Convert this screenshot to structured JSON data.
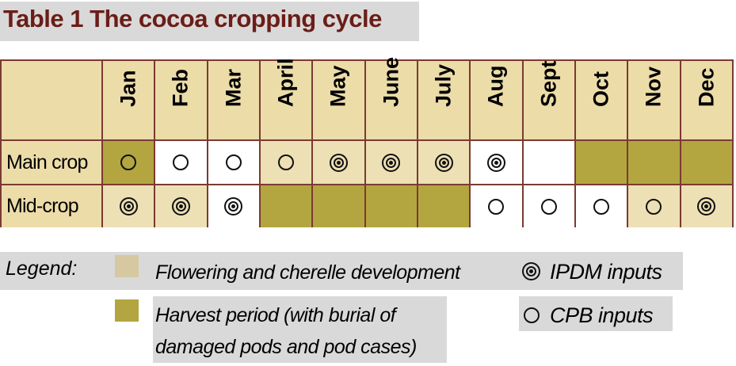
{
  "title": "Table 1  The cocoa cropping cycle",
  "months": [
    "Jan",
    "Feb",
    "Mar",
    "April",
    "May",
    "June",
    "July",
    "Aug",
    "Sept",
    "Oct",
    "Nov",
    "Dec"
  ],
  "rows": [
    {
      "label": "Main crop",
      "cells": [
        {
          "stage": "harvest",
          "input": "cpb"
        },
        {
          "stage": "none",
          "input": "cpb"
        },
        {
          "stage": "none",
          "input": "cpb"
        },
        {
          "stage": "flowering",
          "input": "cpb"
        },
        {
          "stage": "flowering",
          "input": "ipdm"
        },
        {
          "stage": "flowering",
          "input": "ipdm"
        },
        {
          "stage": "flowering",
          "input": "ipdm"
        },
        {
          "stage": "none",
          "input": "ipdm"
        },
        {
          "stage": "none",
          "input": ""
        },
        {
          "stage": "harvest",
          "input": ""
        },
        {
          "stage": "harvest",
          "input": ""
        },
        {
          "stage": "harvest",
          "input": ""
        }
      ]
    },
    {
      "label": "Mid-crop",
      "cells": [
        {
          "stage": "flowering",
          "input": "ipdm"
        },
        {
          "stage": "flowering",
          "input": "ipdm"
        },
        {
          "stage": "none",
          "input": "ipdm"
        },
        {
          "stage": "harvest",
          "input": ""
        },
        {
          "stage": "harvest",
          "input": ""
        },
        {
          "stage": "harvest",
          "input": ""
        },
        {
          "stage": "harvest",
          "input": ""
        },
        {
          "stage": "none",
          "input": "cpb"
        },
        {
          "stage": "none",
          "input": "cpb"
        },
        {
          "stage": "none",
          "input": "cpb"
        },
        {
          "stage": "flowering",
          "input": "cpb"
        },
        {
          "stage": "flowering",
          "input": "ipdm"
        }
      ]
    }
  ],
  "legend": {
    "label": "Legend:",
    "flowering": "Flowering and cherelle development",
    "harvest_line1": "Harvest period (with burial of",
    "harvest_line2": "damaged pods and pod cases)",
    "ipdm": "IPDM inputs",
    "cpb": "CPB inputs"
  },
  "colors": {
    "title": "#6b1d17",
    "grid_border": "#7a3a33",
    "header_fill": "#ecdca8",
    "flowering_fill": "#ede0b4",
    "harvest_fill": "#b3a640",
    "flowering_swatch": "#d6c9a1",
    "harvest_swatch": "#b3a640"
  }
}
